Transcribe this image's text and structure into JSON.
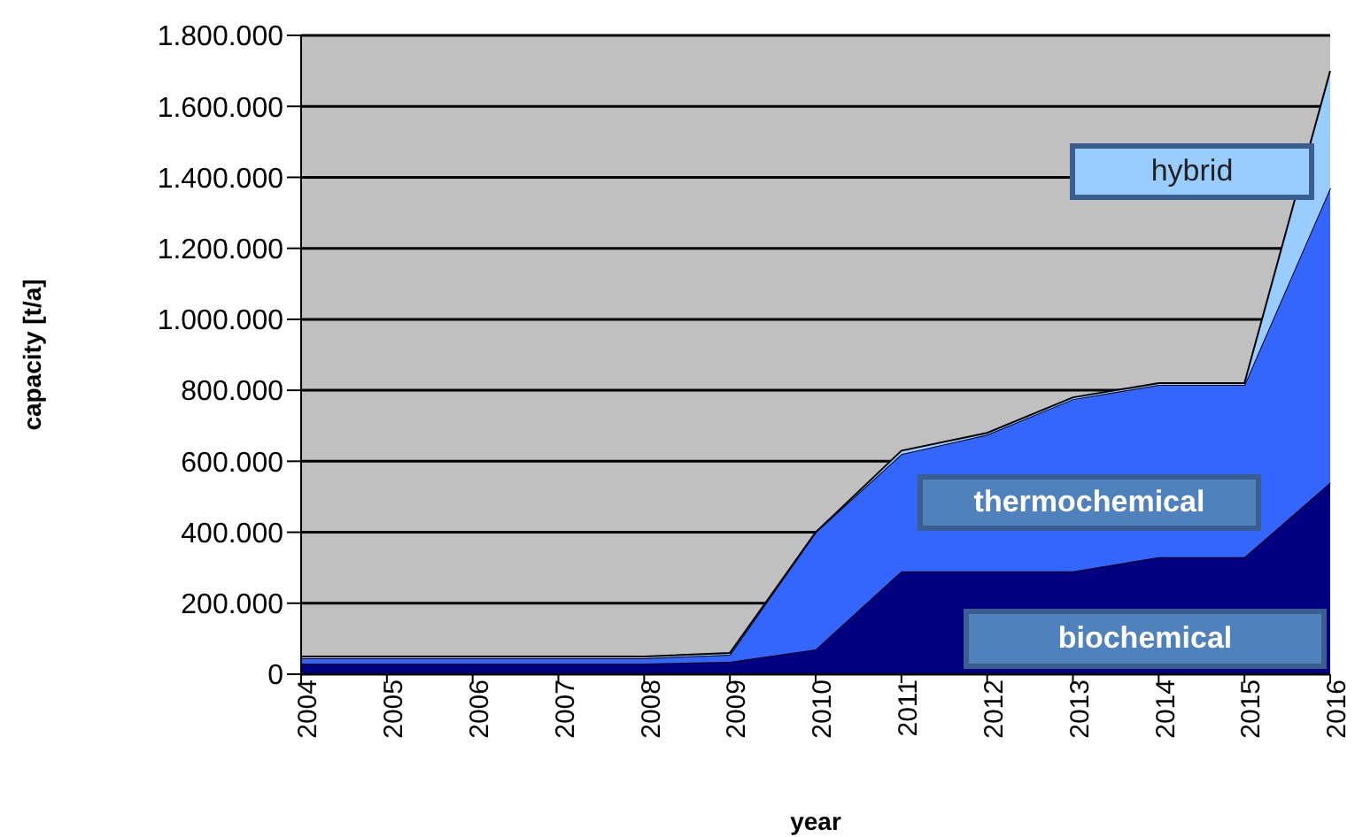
{
  "chart_data": {
    "type": "area",
    "stacked": true,
    "xlabel": "year",
    "ylabel": "capacity [t/a]",
    "categories": [
      "2004",
      "2005",
      "2006",
      "2007",
      "2008",
      "2009",
      "2010",
      "2011",
      "2012",
      "2013",
      "2014",
      "2015",
      "2016"
    ],
    "series": [
      {
        "name": "biochemical",
        "color": "#000080",
        "values": [
          30000,
          30000,
          30000,
          30000,
          30000,
          35000,
          70000,
          290000,
          290000,
          290000,
          330000,
          330000,
          540000
        ]
      },
      {
        "name": "thermochemical",
        "color": "#3366ff",
        "values": [
          15000,
          15000,
          15000,
          15000,
          15000,
          20000,
          330000,
          330000,
          385000,
          485000,
          485000,
          485000,
          830000
        ]
      },
      {
        "name": "hybrid",
        "color": "#99ccff",
        "values": [
          5000,
          5000,
          5000,
          5000,
          5000,
          5000,
          0,
          10000,
          5000,
          5000,
          5000,
          5000,
          330000
        ]
      }
    ],
    "ylim": [
      0,
      1800000
    ],
    "yticks": [
      {
        "value": 0,
        "label": "0"
      },
      {
        "value": 200000,
        "label": "200.000"
      },
      {
        "value": 400000,
        "label": "400.000"
      },
      {
        "value": 600000,
        "label": "600.000"
      },
      {
        "value": 800000,
        "label": "800.000"
      },
      {
        "value": 1000000,
        "label": "1.000.000"
      },
      {
        "value": 1200000,
        "label": "1.200.000"
      },
      {
        "value": 1400000,
        "label": "1.400.000"
      },
      {
        "value": 1600000,
        "label": "1.600.000"
      },
      {
        "value": 1800000,
        "label": "1.800.000"
      }
    ],
    "grid": "y"
  }
}
